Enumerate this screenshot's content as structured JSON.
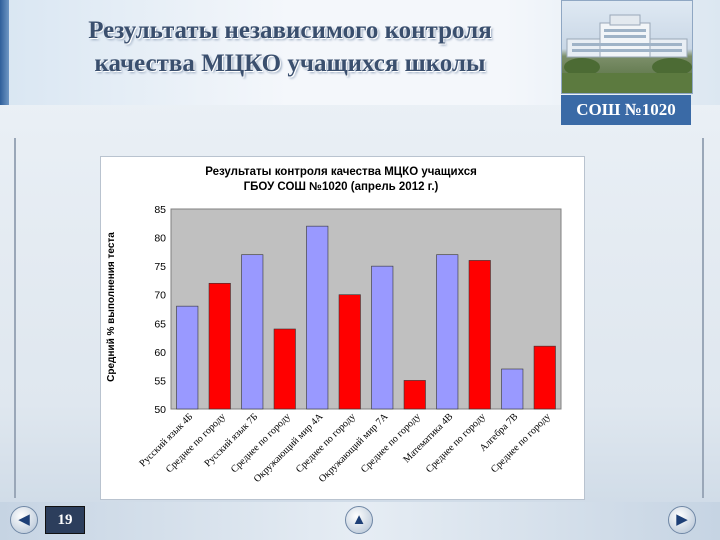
{
  "slide": {
    "title_line1": "Результаты независимого контроля",
    "title_line2": "качества МЦКО учащихся школы",
    "school_badge": "СОШ №1020",
    "page_number": "19",
    "icons": [
      "back-arrow-icon",
      "home-arrow-icon",
      "forward-arrow-icon"
    ]
  },
  "chart_data": {
    "type": "bar",
    "title_line1": "Результаты контроля качества МЦКО учащихся",
    "title_line2": "ГБОУ СОШ №1020 (апрель 2012 г.)",
    "ylabel": "Средний % выполнения теста",
    "xlabel": "",
    "ylim": [
      50,
      85
    ],
    "yticks": [
      50,
      55,
      60,
      65,
      70,
      75,
      80,
      85
    ],
    "categories": [
      "Русский язык 4Б",
      "Среднее по городу",
      "Русский язык 7Б",
      "Среднее по городу",
      "Окружающий мир 4А",
      "Среднее по городу",
      "Окружающий мир 7А",
      "Среднее по городу",
      "Математика 4В",
      "Среднее по городу",
      "Алгебра 7В",
      "Среднее по городу"
    ],
    "values": [
      68,
      72,
      77,
      64,
      82,
      70,
      75,
      55,
      77,
      76,
      57,
      61
    ],
    "bar_colors": [
      "#9999ff",
      "#ff0000",
      "#9999ff",
      "#ff0000",
      "#9999ff",
      "#ff0000",
      "#9999ff",
      "#ff0000",
      "#9999ff",
      "#ff0000",
      "#9999ff",
      "#ff0000"
    ],
    "grid": false,
    "plot_background": "#c0c0c0"
  }
}
